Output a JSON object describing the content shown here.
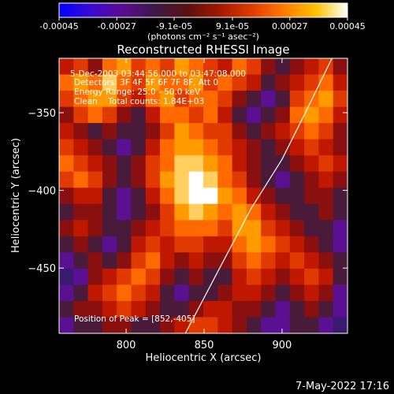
{
  "colorbar": {
    "ticks": [
      "-0.00045",
      "-0.00027",
      "-9.1e-05",
      "9.1e-05",
      "0.00027",
      "0.00045"
    ],
    "tick_values": [
      -0.00045,
      -0.00027,
      -9.1e-05,
      9.1e-05,
      0.00027,
      0.00045
    ],
    "units_label": "(photons cm⁻² s⁻¹ asec⁻²)",
    "stops": [
      "#0000ff",
      "#3a0ad0",
      "#5a0c8c",
      "#3c1848",
      "#5a1010",
      "#a01800",
      "#e03a00",
      "#ff7a00",
      "#ffc000",
      "#ffffff"
    ]
  },
  "annotations": {
    "time_range": "5-Dec-2003 03:44:56.000 to 03:47:08.000",
    "detectors": "Detectors: 3F 4F 5F 6F 7F 8F, Att 0",
    "energy": "Energy Range: 25.0 - 50.0 keV",
    "clean_counts": "Clean    Total counts: 1.84E+03",
    "peak": "Position of Peak = [852,-405]"
  },
  "footer": {
    "date": "7-May-2022 17:16"
  },
  "chart_data": {
    "type": "heatmap",
    "title": "Reconstructed RHESSI Image",
    "xlabel": "Heliocentric X (arcsec)",
    "ylabel": "Heliocentric Y (arcsec)",
    "xlim": [
      757,
      942
    ],
    "ylim": [
      -492,
      -315
    ],
    "xticks": [
      800,
      850,
      900
    ],
    "yticks": [
      -350,
      -400,
      -450
    ],
    "limb_curve": [
      [
        838,
        -492
      ],
      [
        860,
        -450
      ],
      [
        880,
        -412
      ],
      [
        900,
        -380
      ],
      [
        915,
        -350
      ],
      [
        932,
        -315
      ]
    ],
    "peak": [
      852,
      -405
    ],
    "colormap": [
      "#3a1a6e",
      "#5a1090",
      "#4a1a3a",
      "#8a1010",
      "#c01800",
      "#e03a00",
      "#ff6a00",
      "#ff9a00",
      "#ffd060",
      "#ffffff"
    ],
    "grid": [
      [
        4,
        5,
        3,
        6,
        7,
        5,
        6,
        5,
        7,
        6,
        5,
        4,
        6,
        5,
        3,
        2,
        3,
        4,
        5,
        3
      ],
      [
        6,
        7,
        6,
        8,
        6,
        5,
        7,
        6,
        6,
        7,
        5,
        6,
        5,
        4,
        2,
        3,
        4,
        5,
        6,
        4
      ],
      [
        5,
        6,
        7,
        7,
        5,
        4,
        6,
        7,
        5,
        6,
        6,
        5,
        3,
        2,
        1,
        2,
        5,
        6,
        7,
        5
      ],
      [
        3,
        5,
        6,
        5,
        3,
        2,
        4,
        6,
        6,
        5,
        6,
        4,
        2,
        1,
        2,
        3,
        6,
        7,
        6,
        4
      ],
      [
        4,
        3,
        2,
        3,
        2,
        2,
        3,
        5,
        7,
        6,
        5,
        5,
        3,
        2,
        3,
        4,
        5,
        6,
        5,
        3
      ],
      [
        5,
        4,
        3,
        2,
        1,
        2,
        4,
        6,
        7,
        7,
        6,
        5,
        4,
        3,
        2,
        3,
        4,
        5,
        4,
        3
      ],
      [
        6,
        5,
        4,
        3,
        2,
        3,
        5,
        6,
        8,
        8,
        7,
        6,
        4,
        3,
        2,
        2,
        3,
        4,
        5,
        4
      ],
      [
        5,
        6,
        5,
        3,
        2,
        3,
        5,
        7,
        8,
        9,
        8,
        6,
        5,
        3,
        2,
        1,
        2,
        3,
        4,
        3
      ],
      [
        3,
        4,
        4,
        2,
        1,
        2,
        4,
        6,
        8,
        9,
        9,
        7,
        6,
        4,
        3,
        2,
        2,
        3,
        3,
        2
      ],
      [
        2,
        3,
        3,
        2,
        1,
        2,
        3,
        5,
        7,
        8,
        7,
        6,
        7,
        6,
        4,
        3,
        2,
        2,
        3,
        2
      ],
      [
        3,
        4,
        3,
        2,
        2,
        3,
        4,
        5,
        6,
        6,
        6,
        5,
        7,
        7,
        5,
        4,
        3,
        2,
        2,
        1
      ],
      [
        2,
        3,
        2,
        1,
        2,
        4,
        5,
        4,
        5,
        5,
        4,
        4,
        6,
        7,
        6,
        5,
        4,
        3,
        2,
        1
      ],
      [
        1,
        2,
        3,
        2,
        3,
        5,
        6,
        4,
        3,
        4,
        3,
        3,
        5,
        6,
        5,
        4,
        5,
        4,
        3,
        2
      ],
      [
        0,
        1,
        3,
        4,
        5,
        6,
        5,
        3,
        2,
        3,
        2,
        2,
        4,
        5,
        4,
        3,
        4,
        5,
        4,
        2
      ],
      [
        1,
        2,
        4,
        5,
        6,
        5,
        4,
        2,
        1,
        2,
        2,
        3,
        4,
        4,
        3,
        2,
        3,
        4,
        3,
        1
      ],
      [
        2,
        3,
        3,
        4,
        5,
        4,
        3,
        2,
        2,
        3,
        4,
        4,
        3,
        3,
        2,
        1,
        2,
        3,
        2,
        1
      ],
      [
        1,
        2,
        2,
        3,
        3,
        2,
        2,
        3,
        4,
        5,
        5,
        4,
        3,
        2,
        1,
        1,
        2,
        2,
        1,
        0
      ]
    ]
  }
}
